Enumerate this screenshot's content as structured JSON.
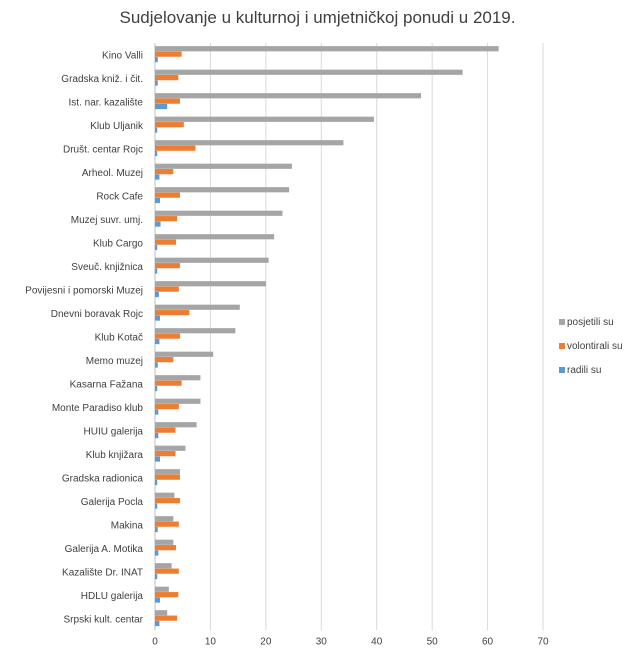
{
  "chart_data": {
    "type": "bar",
    "orientation": "horizontal",
    "title": "Sudjelovanje  u kulturnoj i umjetničkoj ponudi u 2019.",
    "categories": [
      "Kino Valli",
      "Gradska kniž. i čit.",
      "Ist. nar. kazalište",
      "Klub Uljanik",
      "Društ. centar Rojc",
      "Arheol. Muzej",
      "Rock Cafe",
      "Muzej suvr. umj.",
      "Klub Cargo",
      "Sveuč. knjižnica",
      "Povijesni i pomorski Muzej",
      "Dnevni boravak Rojc",
      "Klub Kotač",
      "Memo muzej",
      "Kasarna Fažana",
      "Monte Paradiso klub",
      "HUIU galerija",
      "Klub knjižara",
      "Gradska radionica",
      "Galerija Pocla",
      "Makina",
      "Galerija A. Motika",
      "Kazalište Dr. INAT",
      "HDLU galerija",
      "Srpski kult. centar"
    ],
    "series": [
      {
        "name": "posjetili su",
        "color": "#a5a5a5",
        "values": [
          62,
          55.5,
          48,
          39.5,
          34,
          24.7,
          24.2,
          23,
          21.5,
          20.5,
          20,
          15.3,
          14.5,
          10.5,
          8.2,
          8.2,
          7.5,
          5.5,
          4.5,
          3.5,
          3.3,
          3.3,
          3,
          2.5,
          2.2
        ]
      },
      {
        "name": "volontirali su",
        "color": "#ed7d31",
        "values": [
          4.8,
          4.2,
          4.5,
          5.2,
          7.3,
          3.3,
          4.5,
          4,
          3.8,
          4.5,
          4.3,
          6.2,
          4.5,
          3.3,
          4.8,
          4.3,
          3.7,
          3.7,
          4.5,
          4.5,
          4.3,
          3.8,
          4.3,
          4.2,
          4
        ]
      },
      {
        "name": "radili su",
        "color": "#5b9bd5",
        "values": [
          0.5,
          0.5,
          2.2,
          0.4,
          0.4,
          0.8,
          0.9,
          1,
          0.4,
          0.4,
          0.7,
          0.9,
          0.8,
          0.5,
          0.4,
          0.6,
          0.6,
          0.9,
          0.4,
          0.4,
          0.5,
          0.6,
          0.4,
          0.9,
          0.8
        ]
      }
    ],
    "xlim": [
      0,
      70
    ],
    "xticks": [
      0,
      10,
      20,
      30,
      40,
      50,
      60,
      70
    ],
    "grid": true,
    "legend_position": "right"
  }
}
